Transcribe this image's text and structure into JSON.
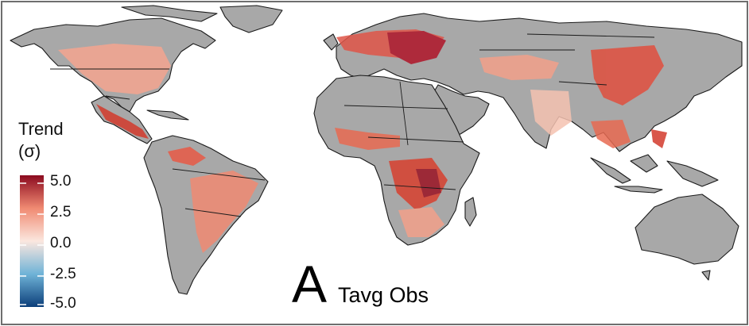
{
  "legend": {
    "title_line1": "Trend",
    "title_line2": "(σ)",
    "ticks": [
      "5.0",
      "2.5",
      "0.0",
      "-2.5",
      "-5.0"
    ],
    "colors": {
      "high": "#8b0a1f",
      "mid_high": "#f08a72",
      "zero": "#fbe7df",
      "mid_low": "#6fb3d7",
      "low": "#0b3e7a"
    }
  },
  "panel": {
    "letter": "A",
    "label": "Tavg Obs"
  },
  "colors": {
    "land_no_data": "#a8a8a8",
    "ocean": "#ffffff"
  }
}
